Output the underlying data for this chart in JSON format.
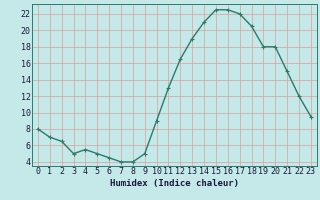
{
  "x": [
    0,
    1,
    2,
    3,
    4,
    5,
    6,
    7,
    8,
    9,
    10,
    11,
    12,
    13,
    14,
    15,
    16,
    17,
    18,
    19,
    20,
    21,
    22,
    23
  ],
  "y": [
    8,
    7,
    6.5,
    5,
    5.5,
    5,
    4.5,
    4,
    4,
    5,
    9,
    13,
    16.5,
    19,
    21,
    22.5,
    22.5,
    22,
    20.5,
    18,
    18,
    15,
    12,
    9.5
  ],
  "line_color": "#2d7a6a",
  "marker": "+",
  "marker_color": "#2d7a6a",
  "bg_color": "#c5e8e8",
  "grid_color": "#d8a0a0",
  "xlabel": "Humidex (Indice chaleur)",
  "xlim": [
    -0.5,
    23.5
  ],
  "ylim": [
    3.5,
    23.2
  ],
  "xticks": [
    0,
    1,
    2,
    3,
    4,
    5,
    6,
    7,
    8,
    9,
    10,
    11,
    12,
    13,
    14,
    15,
    16,
    17,
    18,
    19,
    20,
    21,
    22,
    23
  ],
  "yticks": [
    4,
    6,
    8,
    10,
    12,
    14,
    16,
    18,
    20,
    22
  ],
  "label_fontsize": 6.5,
  "tick_fontsize": 6,
  "linewidth": 1.0,
  "markersize": 3.5
}
